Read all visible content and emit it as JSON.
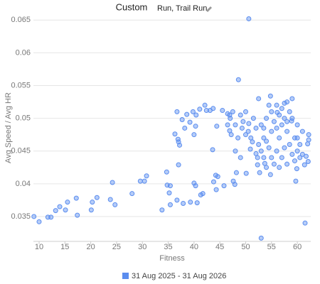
{
  "chart_data": {
    "type": "scatter",
    "title": "Custom",
    "subtitle": "Run, Trail Run",
    "x_label": "Fitness",
    "y_label": "Avg Speed / Avg HR",
    "xlim": [
      8.9,
      62.6
    ],
    "ylim": [
      0.0312,
      0.0659
    ],
    "xticks": [
      10,
      15,
      20,
      25,
      30,
      35,
      40,
      45,
      50,
      55,
      60
    ],
    "yticks": [
      0.035,
      0.04,
      0.045,
      0.05,
      0.055,
      0.06,
      0.065
    ],
    "grid": true,
    "legend": "bottom",
    "x": [
      9.0,
      10.0,
      11.7,
      12.3,
      13.2,
      14.0,
      15.1,
      15.5,
      17.2,
      17.4,
      20.1,
      20.3,
      21.2,
      23.8,
      24.2,
      24.7,
      28.0,
      29.6,
      30.4,
      30.8,
      33.8,
      34.7,
      34.8,
      35.2,
      35.4,
      35.4,
      36.7,
      37.0,
      36.3,
      36.9,
      37.0,
      37.2,
      36.7,
      37.7,
      38.2,
      38.6,
      39.2,
      39.8,
      39.3,
      37.9,
      40.0,
      40.3,
      40.6,
      41.3,
      41.7,
      40.0,
      40.3,
      40.4,
      41.1,
      42.1,
      42.4,
      43.1,
      43.7,
      44.4,
      43.6,
      43.8,
      44.2,
      44.3,
      44.6,
      45.8,
      45.5,
      46.5,
      47.2,
      46.9,
      46.9,
      47.6,
      47.9,
      48.2,
      48.6,
      50.1,
      50.6,
      50.6,
      49.3,
      50.0,
      50.9,
      51.3,
      52.0,
      52.3,
      53.0,
      52.3,
      52.7,
      53.7,
      54.8,
      54.8,
      56.1,
      57.5,
      58.9,
      59.7,
      59.9,
      61.5,
      61.4,
      62.0,
      62.2,
      62.2,
      61.7,
      62.1,
      47,
      47.5,
      48,
      48.5,
      49,
      49.5,
      50,
      50.5,
      51,
      51.5,
      52,
      52.5,
      52.5,
      53,
      53,
      53.5,
      53.5,
      54,
      54,
      54.5,
      54.5,
      55,
      55,
      55,
      55.5,
      55.5,
      56,
      56,
      56,
      56.5,
      56.5,
      57,
      57,
      57,
      57.5,
      57.5,
      58,
      58,
      58,
      58.5,
      58.5,
      59,
      59,
      59,
      59.5,
      59.5,
      60,
      60,
      60.5,
      60.5,
      61,
      61,
      48,
      49,
      46.5,
      53.5,
      54,
      56.5,
      58,
      60
    ],
    "series": [
      {
        "name": "31 Aug 2025 - 31 Aug 2026",
        "color": "#5b8def",
        "values": [
          0.035,
          0.0342,
          0.0349,
          0.0349,
          0.0359,
          0.0365,
          0.036,
          0.0372,
          0.0378,
          0.0352,
          0.036,
          0.0372,
          0.0379,
          0.0376,
          0.0402,
          0.0368,
          0.0385,
          0.0404,
          0.0404,
          0.0412,
          0.036,
          0.0418,
          0.0398,
          0.0386,
          0.0368,
          0.0397,
          0.0375,
          0.0429,
          0.0476,
          0.0468,
          0.0464,
          0.0459,
          0.051,
          0.0498,
          0.0485,
          0.0506,
          0.0494,
          0.051,
          0.0372,
          0.037,
          0.0401,
          0.0397,
          0.0371,
          0.0383,
          0.0385,
          0.0475,
          0.0488,
          0.0505,
          0.0514,
          0.052,
          0.0512,
          0.0512,
          0.0515,
          0.0488,
          0.0452,
          0.0403,
          0.0413,
          0.0391,
          0.0411,
          0.0397,
          0.0512,
          0.0507,
          0.0475,
          0.0481,
          0.0505,
          0.0404,
          0.0399,
          0.0417,
          0.0559,
          0.0416,
          0.0652,
          0.0492,
          0.0485,
          0.0475,
          0.0453,
          0.0464,
          0.0446,
          0.044,
          0.0317,
          0.0429,
          0.0417,
          0.0431,
          0.0414,
          0.0534,
          0.0509,
          0.0523,
          0.0496,
          0.0404,
          0.0423,
          0.034,
          0.0429,
          0.0461,
          0.0475,
          0.0467,
          0.0442,
          0.0434,
          0.05,
          0.051,
          0.049,
          0.047,
          0.0505,
          0.0495,
          0.051,
          0.048,
          0.047,
          0.05,
          0.0485,
          0.053,
          0.046,
          0.049,
          0.045,
          0.044,
          0.047,
          0.05,
          0.0425,
          0.052,
          0.0455,
          0.051,
          0.048,
          0.044,
          0.0495,
          0.043,
          0.052,
          0.0485,
          0.045,
          0.0505,
          0.047,
          0.0515,
          0.049,
          0.044,
          0.05,
          0.0455,
          0.0525,
          0.048,
          0.043,
          0.051,
          0.046,
          0.053,
          0.05,
          0.0445,
          0.047,
          0.0435,
          0.049,
          0.045,
          0.046,
          0.044,
          0.048,
          0.0445,
          0.045,
          0.044,
          0.049,
          0.0485,
          0.0465,
          0.0425,
          0.0495,
          0.047
        ]
      }
    ]
  }
}
